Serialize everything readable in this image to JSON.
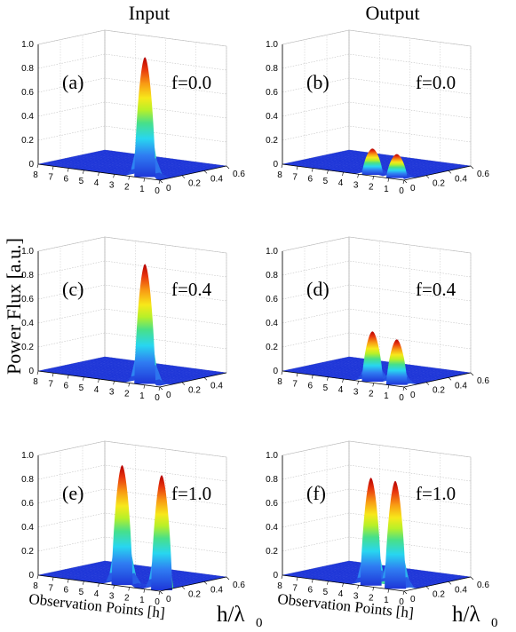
{
  "column_titles": [
    "Input",
    "Output"
  ],
  "ylabel": "Power Flux [a.u.]",
  "xlabel": "Observation Points [h]",
  "hlabel": "h/λ",
  "hlabel_sub": "0",
  "colors": {
    "surface_low": "#1e36d8",
    "peak_top": "#c80000",
    "grid": "#b8b8b8"
  },
  "chart_data": [
    {
      "type": "area",
      "panel": "(a)",
      "column": "Input",
      "f_label": "f=0.0",
      "zlim": [
        0,
        1
      ],
      "z_ticks": [
        "0",
        "0.2",
        "0.4",
        "0.6",
        "0.8",
        "1.0"
      ],
      "obs_ticks": [
        "8",
        "7",
        "6",
        "5",
        "4",
        "3",
        "2",
        "1",
        "0"
      ],
      "h_ticks": [
        "0",
        "0.2",
        "0.4",
        "0.6"
      ],
      "grid": true,
      "peaks": [
        {
          "obs": 1.2,
          "h": 0.03,
          "power": 1.0
        }
      ]
    },
    {
      "type": "area",
      "panel": "(b)",
      "column": "Output",
      "f_label": "f=0.0",
      "zlim": [
        0,
        1
      ],
      "z_ticks": [
        "0",
        "0.2",
        "0.4",
        "0.6",
        "0.8",
        "1.0"
      ],
      "obs_ticks": [
        "8",
        "7",
        "6",
        "5",
        "4",
        "3",
        "2",
        "1",
        "0"
      ],
      "h_ticks": [
        "0",
        "0.2",
        "0.4",
        "0.6"
      ],
      "grid": true,
      "peaks": [
        {
          "obs": 2.3,
          "h": 0.03,
          "power": 0.22
        },
        {
          "obs": 0.7,
          "h": 0.03,
          "power": 0.2
        }
      ]
    },
    {
      "type": "area",
      "panel": "(c)",
      "column": "Input",
      "f_label": "f=0.4",
      "zlim": [
        0,
        1
      ],
      "z_ticks": [
        "0",
        "0.2",
        "0.4",
        "0.6",
        "0.8",
        "1.0"
      ],
      "obs_ticks": [
        "8",
        "7",
        "6",
        "5",
        "4",
        "3",
        "2",
        "1",
        "0"
      ],
      "h_ticks": [
        "0",
        "0.2",
        "0.4"
      ],
      "grid": true,
      "peaks": [
        {
          "obs": 1.2,
          "h": 0.03,
          "power": 1.0
        },
        {
          "obs": -0.4,
          "h": 0.03,
          "power": 0.05
        }
      ]
    },
    {
      "type": "area",
      "panel": "(d)",
      "column": "Output",
      "f_label": "f=0.4",
      "zlim": [
        0,
        1
      ],
      "z_ticks": [
        "0",
        "0.2",
        "0.4",
        "0.6",
        "0.8",
        "1.0"
      ],
      "obs_ticks": [
        "8",
        "7",
        "6",
        "5",
        "4",
        "3",
        "2",
        "1",
        "0"
      ],
      "h_ticks": [
        "0",
        "0.2",
        "0.4",
        "0.6"
      ],
      "grid": true,
      "peaks": [
        {
          "obs": 2.3,
          "h": 0.03,
          "power": 0.42
        },
        {
          "obs": 0.7,
          "h": 0.03,
          "power": 0.38
        }
      ]
    },
    {
      "type": "area",
      "panel": "(e)",
      "column": "Input",
      "f_label": "f=1.0",
      "zlim": [
        0,
        1
      ],
      "z_ticks": [
        "0",
        "0.2",
        "0.4",
        "0.6",
        "0.8",
        "1.0"
      ],
      "obs_ticks": [
        "8",
        "7",
        "6",
        "5",
        "4",
        "3",
        "2",
        "1",
        "0"
      ],
      "h_ticks": [
        "0",
        "0.2",
        "0.4",
        "0.6"
      ],
      "grid": true,
      "peaks": [
        {
          "obs": 2.7,
          "h": 0.03,
          "power": 1.0
        },
        {
          "obs": 0.1,
          "h": 0.03,
          "power": 0.96
        }
      ]
    },
    {
      "type": "area",
      "panel": "(f)",
      "column": "Output",
      "f_label": "f=1.0",
      "zlim": [
        0,
        1
      ],
      "z_ticks": [
        "0",
        "0.2",
        "0.4",
        "0.6",
        "0.8",
        "1.0"
      ],
      "obs_ticks": [
        "8",
        "7",
        "6",
        "5",
        "4",
        "3",
        "2",
        "1",
        "0"
      ],
      "h_ticks": [
        "0",
        "0.2",
        "0.4",
        "0.6"
      ],
      "grid": true,
      "peaks": [
        {
          "obs": 2.4,
          "h": 0.03,
          "power": 0.9
        },
        {
          "obs": 0.8,
          "h": 0.03,
          "power": 0.9
        }
      ]
    }
  ]
}
